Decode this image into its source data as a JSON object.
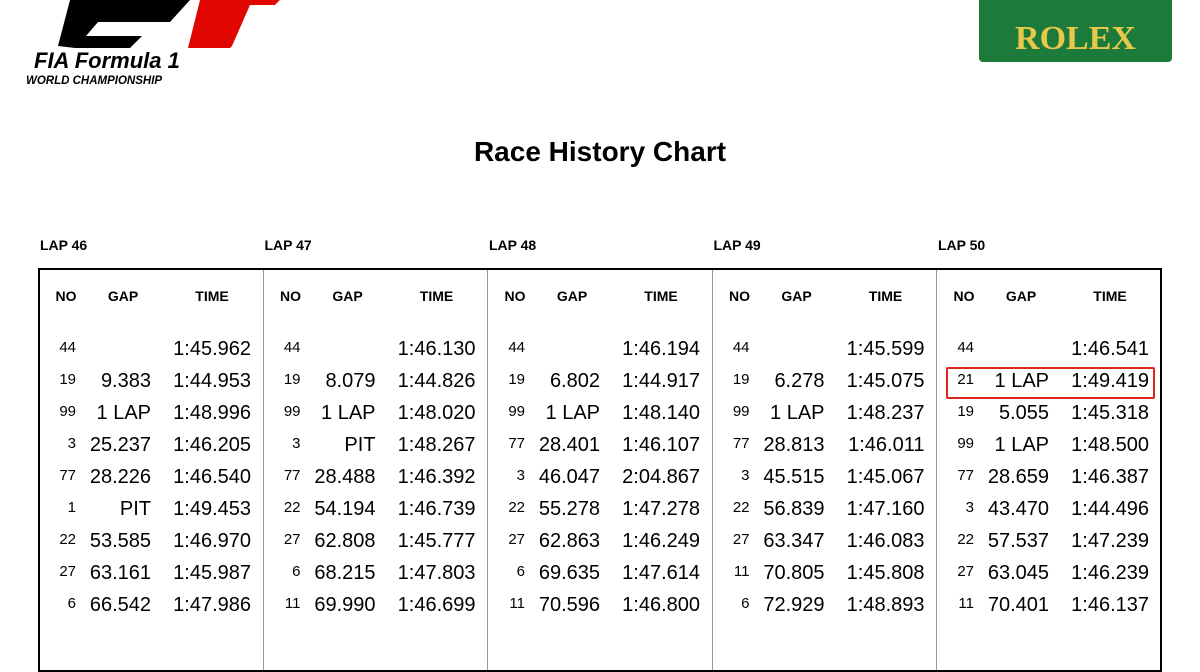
{
  "header": {
    "logo_left": {
      "title": "FIA Formula 1",
      "subtitle": "WORLD CHAMPIONSHIP"
    },
    "logo_right": "ROLEX"
  },
  "title": "Race History Chart",
  "columns": [
    "NO",
    "GAP",
    "TIME"
  ],
  "laps": [
    {
      "label": "LAP 46",
      "rows": [
        {
          "no": "44",
          "time": "1:45.962"
        },
        {
          "no": "19",
          "gap": "9.383",
          "time": "1:44.953"
        },
        {
          "no": "99",
          "gap": "1 LAP",
          "time": "1:48.996"
        },
        {
          "no": "3",
          "gap": "25.237",
          "time": "1:46.205"
        },
        {
          "no": "77",
          "gap": "28.226",
          "time": "1:46.540"
        },
        {
          "no": "1",
          "gap": "PIT",
          "time": "1:49.453"
        },
        {
          "no": "22",
          "gap": "53.585",
          "time": "1:46.970"
        },
        {
          "no": "27",
          "gap": "63.161",
          "time": "1:45.987"
        },
        {
          "no": "6",
          "gap": "66.542",
          "time": "1:47.986"
        }
      ]
    },
    {
      "label": "LAP 47",
      "rows": [
        {
          "no": "44",
          "time": "1:46.130"
        },
        {
          "no": "19",
          "gap": "8.079",
          "time": "1:44.826"
        },
        {
          "no": "99",
          "gap": "1 LAP",
          "time": "1:48.020"
        },
        {
          "no": "3",
          "gap": "PIT",
          "time": "1:48.267"
        },
        {
          "no": "77",
          "gap": "28.488",
          "time": "1:46.392"
        },
        {
          "no": "22",
          "gap": "54.194",
          "time": "1:46.739"
        },
        {
          "no": "27",
          "gap": "62.808",
          "time": "1:45.777"
        },
        {
          "no": "6",
          "gap": "68.215",
          "time": "1:47.803"
        },
        {
          "no": "11",
          "gap": "69.990",
          "time": "1:46.699"
        }
      ]
    },
    {
      "label": "LAP 48",
      "rows": [
        {
          "no": "44",
          "time": "1:46.194"
        },
        {
          "no": "19",
          "gap": "6.802",
          "time": "1:44.917"
        },
        {
          "no": "99",
          "gap": "1 LAP",
          "time": "1:48.140"
        },
        {
          "no": "77",
          "gap": "28.401",
          "time": "1:46.107"
        },
        {
          "no": "3",
          "gap": "46.047",
          "time": "2:04.867"
        },
        {
          "no": "22",
          "gap": "55.278",
          "time": "1:47.278"
        },
        {
          "no": "27",
          "gap": "62.863",
          "time": "1:46.249"
        },
        {
          "no": "6",
          "gap": "69.635",
          "time": "1:47.614"
        },
        {
          "no": "11",
          "gap": "70.596",
          "time": "1:46.800"
        }
      ]
    },
    {
      "label": "LAP 49",
      "rows": [
        {
          "no": "44",
          "time": "1:45.599"
        },
        {
          "no": "19",
          "gap": "6.278",
          "time": "1:45.075"
        },
        {
          "no": "99",
          "gap": "1 LAP",
          "time": "1:48.237"
        },
        {
          "no": "77",
          "gap": "28.813",
          "time": "1:46.011"
        },
        {
          "no": "3",
          "gap": "45.515",
          "time": "1:45.067"
        },
        {
          "no": "22",
          "gap": "56.839",
          "time": "1:47.160"
        },
        {
          "no": "27",
          "gap": "63.347",
          "time": "1:46.083"
        },
        {
          "no": "11",
          "gap": "70.805",
          "time": "1:45.808"
        },
        {
          "no": "6",
          "gap": "72.929",
          "time": "1:48.893"
        }
      ]
    },
    {
      "label": "LAP 50",
      "rows": [
        {
          "no": "44",
          "time": "1:46.541"
        },
        {
          "no": "21",
          "gap": "1 LAP",
          "time": "1:49.419",
          "highlighted": true
        },
        {
          "no": "19",
          "gap": "5.055",
          "time": "1:45.318"
        },
        {
          "no": "99",
          "gap": "1 LAP",
          "time": "1:48.500"
        },
        {
          "no": "77",
          "gap": "28.659",
          "time": "1:46.387"
        },
        {
          "no": "3",
          "gap": "43.470",
          "time": "1:44.496"
        },
        {
          "no": "22",
          "gap": "57.537",
          "time": "1:47.239"
        },
        {
          "no": "27",
          "gap": "63.045",
          "time": "1:46.239"
        },
        {
          "no": "11",
          "gap": "70.401",
          "time": "1:46.137"
        }
      ]
    }
  ]
}
